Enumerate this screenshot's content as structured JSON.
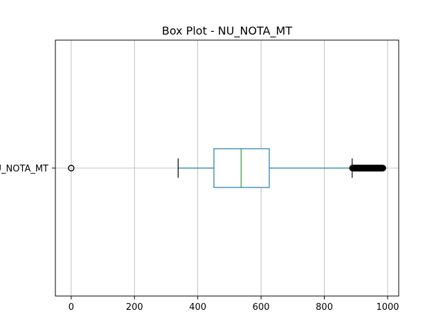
{
  "chart_data": {
    "type": "box",
    "orientation": "horizontal",
    "title": "Box Plot - NU_NOTA_MT",
    "categories": [
      "NU_NOTA_MT"
    ],
    "xlim": [
      -50,
      1035
    ],
    "xticks": [
      0,
      200,
      400,
      600,
      800,
      1000
    ],
    "grid": true,
    "boxes": [
      {
        "label": "NU_NOTA_MT",
        "whisker_low": 338,
        "q1": 451,
        "median": 537,
        "q3": 626,
        "whisker_high": 888,
        "outliers_low": [
          0
        ],
        "outliers_high_range": [
          888,
          985
        ]
      }
    ],
    "colors": {
      "box": "#1f77b4",
      "median": "#2ca02c",
      "whisker": "#1f77b4",
      "cap": "#000000",
      "flier": "#000000",
      "grid": "#b0b0b0"
    }
  }
}
